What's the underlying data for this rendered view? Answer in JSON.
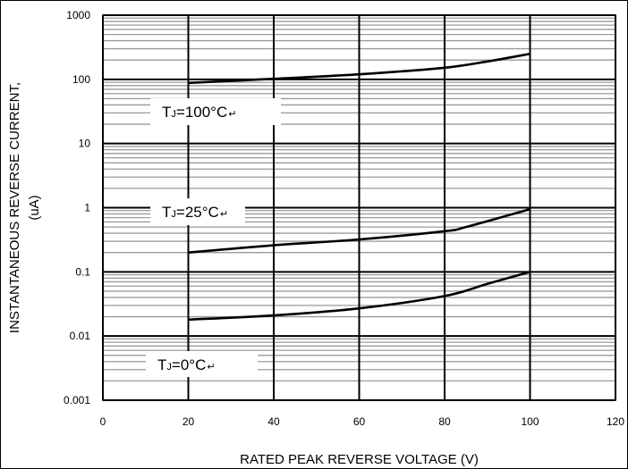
{
  "chart_data": {
    "type": "line",
    "title": "",
    "xlabel": "RATED PEAK REVERSE VOLTAGE (V)",
    "ylabel_lines": [
      "INSTANTANEOUS REVERSE CURRENT,",
      "(uA)"
    ],
    "x_scale": "linear",
    "y_scale": "log",
    "xlim": [
      0,
      120
    ],
    "ylim": [
      0.001,
      1000
    ],
    "x_ticks": [
      0,
      20,
      40,
      60,
      80,
      100,
      120
    ],
    "x_tick_labels": [
      "0",
      "20",
      "40",
      "60",
      "80",
      "100",
      "120"
    ],
    "y_ticks": [
      0.001,
      0.01,
      0.1,
      1,
      10,
      100,
      1000
    ],
    "y_tick_labels": [
      "0.001",
      "0.01",
      "0.1",
      "1",
      "10",
      "100",
      "1000"
    ],
    "grid": true,
    "series": [
      {
        "label_main": "T",
        "label_sub": "J",
        "label_rest": "=100°C",
        "label_mark": "↵",
        "x": [
          20,
          40,
          60,
          80,
          90,
          100
        ],
        "y": [
          88,
          102,
          120,
          152,
          190,
          250
        ]
      },
      {
        "label_main": "T",
        "label_sub": "J",
        "label_rest": "=25°C",
        "label_mark": "↵",
        "x": [
          20,
          40,
          60,
          80,
          85,
          100
        ],
        "y": [
          0.2,
          0.26,
          0.32,
          0.43,
          0.5,
          0.95
        ]
      },
      {
        "label_main": "T",
        "label_sub": "J",
        "label_rest": "=0°C",
        "label_mark": "↵",
        "x": [
          20,
          40,
          60,
          80,
          90,
          100
        ],
        "y": [
          0.018,
          0.021,
          0.027,
          0.042,
          0.065,
          0.1
        ]
      }
    ]
  }
}
